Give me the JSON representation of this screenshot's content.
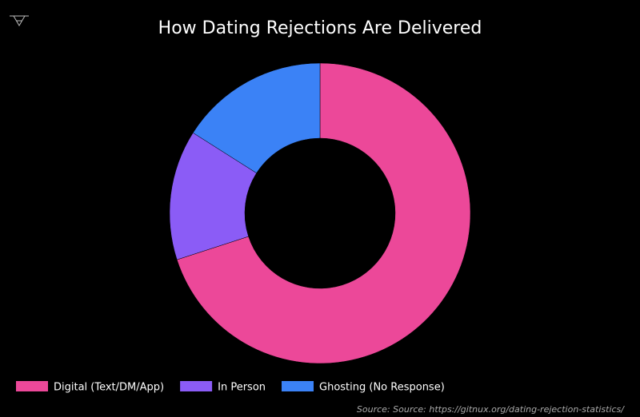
{
  "chart_data": {
    "type": "donut",
    "title": "How Dating Rejections Are Delivered",
    "categories": [
      "Digital (Text/DM/App)",
      "In Person",
      "Ghosting (No Response)"
    ],
    "values": [
      70,
      14,
      16
    ],
    "colors": [
      "#ec4899",
      "#8b5cf6",
      "#3b82f6"
    ],
    "legend": "bottom-left",
    "source": "Source: Source: https://gitnux.org/dating-rejection-statistics/"
  }
}
